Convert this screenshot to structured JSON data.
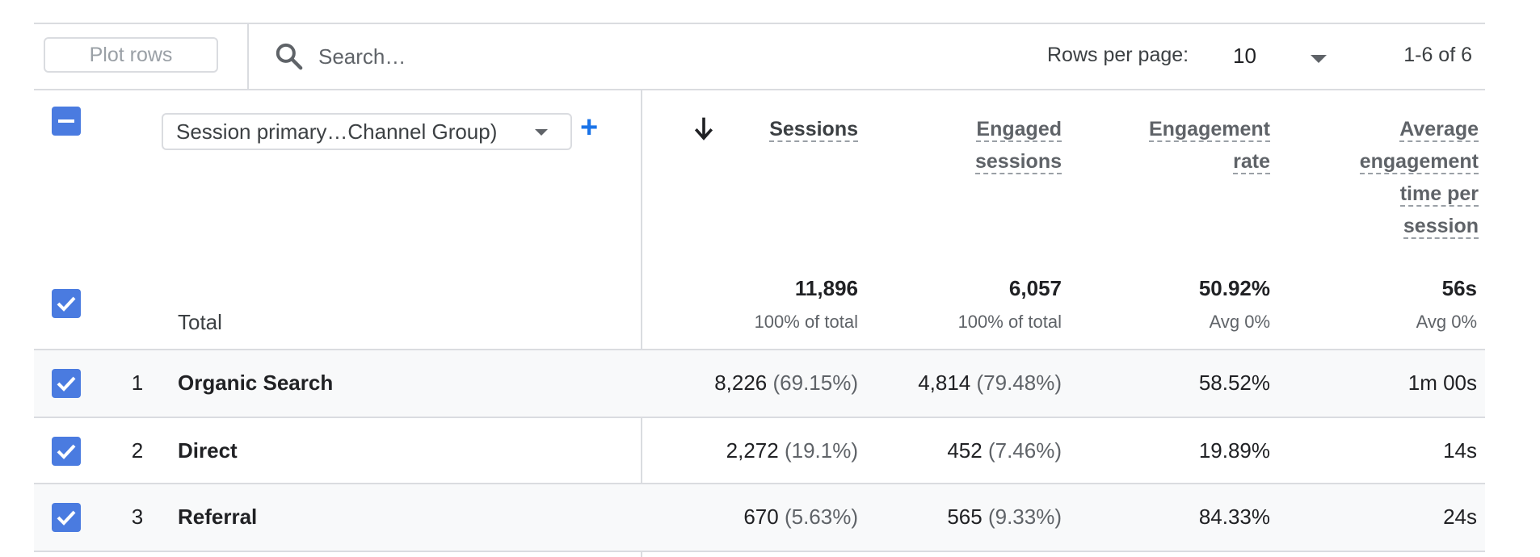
{
  "toolbar": {
    "plot_rows_label": "Plot rows",
    "search_placeholder": "Search…",
    "rows_per_page_label": "Rows per page:",
    "rows_per_page_value": "10",
    "pagination": "1-6 of 6"
  },
  "header": {
    "dimension_select": "Session primary…Channel Group)",
    "columns": [
      {
        "label_lines": [
          "Sessions"
        ],
        "sorted": "descending"
      },
      {
        "label_lines": [
          "Engaged",
          "sessions"
        ]
      },
      {
        "label_lines": [
          "Engagement",
          "rate"
        ]
      },
      {
        "label_lines": [
          "Average",
          "engagement",
          "time per",
          "session"
        ]
      }
    ]
  },
  "totals": {
    "label": "Total",
    "values": [
      "11,896",
      "6,057",
      "50.92%",
      "56s"
    ],
    "subs": [
      "100% of total",
      "100% of total",
      "Avg 0%",
      "Avg 0%"
    ]
  },
  "rows": [
    {
      "num": "1",
      "name": "Organic Search",
      "sessions": "8,226",
      "sessions_pct": "(69.15%)",
      "engaged": "4,814",
      "engaged_pct": "(79.48%)",
      "rate": "58.52%",
      "avg_time": "1m 00s"
    },
    {
      "num": "2",
      "name": "Direct",
      "sessions": "2,272",
      "sessions_pct": "(19.1%)",
      "engaged": "452",
      "engaged_pct": "(7.46%)",
      "rate": "19.89%",
      "avg_time": "14s"
    },
    {
      "num": "3",
      "name": "Referral",
      "sessions": "670",
      "sessions_pct": "(5.63%)",
      "engaged": "565",
      "engaged_pct": "(9.33%)",
      "rate": "84.33%",
      "avg_time": "24s"
    }
  ],
  "colors": {
    "checkbox": "#4a7be0",
    "accent": "#1a73e8",
    "row_shade": "#f8f9fa"
  }
}
